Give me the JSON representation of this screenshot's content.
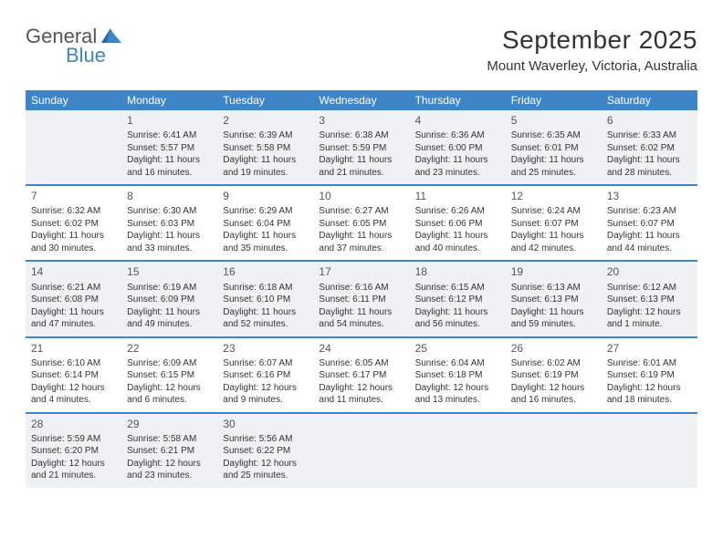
{
  "logo": {
    "word1": "General",
    "word2": "Blue"
  },
  "header": {
    "title": "September 2025",
    "location": "Mount Waverley, Victoria, Australia"
  },
  "colors": {
    "brand_blue": "#3d85c6",
    "shade": "#eef2f5",
    "text": "#333333"
  },
  "weekdays": [
    "Sunday",
    "Monday",
    "Tuesday",
    "Wednesday",
    "Thursday",
    "Friday",
    "Saturday"
  ],
  "days": [
    {
      "n": 1,
      "dow": 1,
      "sunrise": "6:41 AM",
      "sunset": "5:57 PM",
      "daylight": "11 hours and 16 minutes."
    },
    {
      "n": 2,
      "dow": 2,
      "sunrise": "6:39 AM",
      "sunset": "5:58 PM",
      "daylight": "11 hours and 19 minutes."
    },
    {
      "n": 3,
      "dow": 3,
      "sunrise": "6:38 AM",
      "sunset": "5:59 PM",
      "daylight": "11 hours and 21 minutes."
    },
    {
      "n": 4,
      "dow": 4,
      "sunrise": "6:36 AM",
      "sunset": "6:00 PM",
      "daylight": "11 hours and 23 minutes."
    },
    {
      "n": 5,
      "dow": 5,
      "sunrise": "6:35 AM",
      "sunset": "6:01 PM",
      "daylight": "11 hours and 25 minutes."
    },
    {
      "n": 6,
      "dow": 6,
      "sunrise": "6:33 AM",
      "sunset": "6:02 PM",
      "daylight": "11 hours and 28 minutes."
    },
    {
      "n": 7,
      "dow": 0,
      "sunrise": "6:32 AM",
      "sunset": "6:02 PM",
      "daylight": "11 hours and 30 minutes."
    },
    {
      "n": 8,
      "dow": 1,
      "sunrise": "6:30 AM",
      "sunset": "6:03 PM",
      "daylight": "11 hours and 33 minutes."
    },
    {
      "n": 9,
      "dow": 2,
      "sunrise": "6:29 AM",
      "sunset": "6:04 PM",
      "daylight": "11 hours and 35 minutes."
    },
    {
      "n": 10,
      "dow": 3,
      "sunrise": "6:27 AM",
      "sunset": "6:05 PM",
      "daylight": "11 hours and 37 minutes."
    },
    {
      "n": 11,
      "dow": 4,
      "sunrise": "6:26 AM",
      "sunset": "6:06 PM",
      "daylight": "11 hours and 40 minutes."
    },
    {
      "n": 12,
      "dow": 5,
      "sunrise": "6:24 AM",
      "sunset": "6:07 PM",
      "daylight": "11 hours and 42 minutes."
    },
    {
      "n": 13,
      "dow": 6,
      "sunrise": "6:23 AM",
      "sunset": "6:07 PM",
      "daylight": "11 hours and 44 minutes."
    },
    {
      "n": 14,
      "dow": 0,
      "sunrise": "6:21 AM",
      "sunset": "6:08 PM",
      "daylight": "11 hours and 47 minutes."
    },
    {
      "n": 15,
      "dow": 1,
      "sunrise": "6:19 AM",
      "sunset": "6:09 PM",
      "daylight": "11 hours and 49 minutes."
    },
    {
      "n": 16,
      "dow": 2,
      "sunrise": "6:18 AM",
      "sunset": "6:10 PM",
      "daylight": "11 hours and 52 minutes."
    },
    {
      "n": 17,
      "dow": 3,
      "sunrise": "6:16 AM",
      "sunset": "6:11 PM",
      "daylight": "11 hours and 54 minutes."
    },
    {
      "n": 18,
      "dow": 4,
      "sunrise": "6:15 AM",
      "sunset": "6:12 PM",
      "daylight": "11 hours and 56 minutes."
    },
    {
      "n": 19,
      "dow": 5,
      "sunrise": "6:13 AM",
      "sunset": "6:13 PM",
      "daylight": "11 hours and 59 minutes."
    },
    {
      "n": 20,
      "dow": 6,
      "sunrise": "6:12 AM",
      "sunset": "6:13 PM",
      "daylight": "12 hours and 1 minute."
    },
    {
      "n": 21,
      "dow": 0,
      "sunrise": "6:10 AM",
      "sunset": "6:14 PM",
      "daylight": "12 hours and 4 minutes."
    },
    {
      "n": 22,
      "dow": 1,
      "sunrise": "6:09 AM",
      "sunset": "6:15 PM",
      "daylight": "12 hours and 6 minutes."
    },
    {
      "n": 23,
      "dow": 2,
      "sunrise": "6:07 AM",
      "sunset": "6:16 PM",
      "daylight": "12 hours and 9 minutes."
    },
    {
      "n": 24,
      "dow": 3,
      "sunrise": "6:05 AM",
      "sunset": "6:17 PM",
      "daylight": "12 hours and 11 minutes."
    },
    {
      "n": 25,
      "dow": 4,
      "sunrise": "6:04 AM",
      "sunset": "6:18 PM",
      "daylight": "12 hours and 13 minutes."
    },
    {
      "n": 26,
      "dow": 5,
      "sunrise": "6:02 AM",
      "sunset": "6:19 PM",
      "daylight": "12 hours and 16 minutes."
    },
    {
      "n": 27,
      "dow": 6,
      "sunrise": "6:01 AM",
      "sunset": "6:19 PM",
      "daylight": "12 hours and 18 minutes."
    },
    {
      "n": 28,
      "dow": 0,
      "sunrise": "5:59 AM",
      "sunset": "6:20 PM",
      "daylight": "12 hours and 21 minutes."
    },
    {
      "n": 29,
      "dow": 1,
      "sunrise": "5:58 AM",
      "sunset": "6:21 PM",
      "daylight": "12 hours and 23 minutes."
    },
    {
      "n": 30,
      "dow": 2,
      "sunrise": "5:56 AM",
      "sunset": "6:22 PM",
      "daylight": "12 hours and 25 minutes."
    }
  ],
  "labels": {
    "sunrise": "Sunrise:",
    "sunset": "Sunset:",
    "daylight": "Daylight:"
  },
  "layout": {
    "first_dow": 1,
    "total_days": 30,
    "weeks": 5
  }
}
